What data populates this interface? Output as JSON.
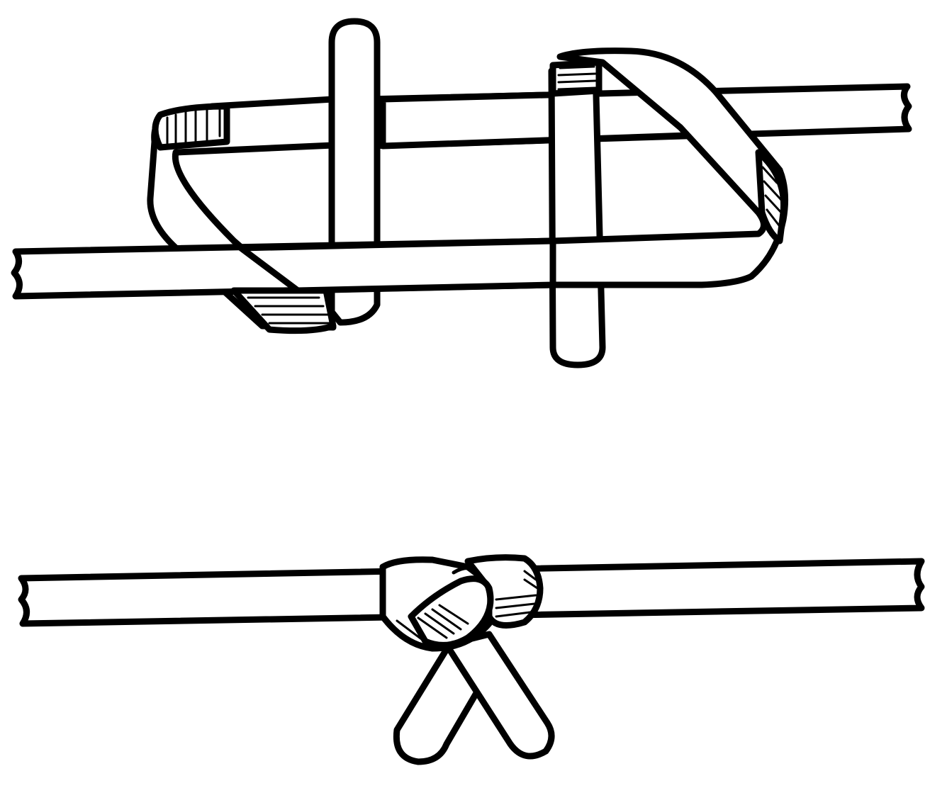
{
  "figure": {
    "panels": [
      {
        "id": "top",
        "description_name": "loosened-knot-stage"
      },
      {
        "id": "bottom",
        "description_name": "tightened-knot-stage"
      }
    ],
    "colors": {
      "ink": "#000000",
      "paper": "#ffffff"
    }
  }
}
